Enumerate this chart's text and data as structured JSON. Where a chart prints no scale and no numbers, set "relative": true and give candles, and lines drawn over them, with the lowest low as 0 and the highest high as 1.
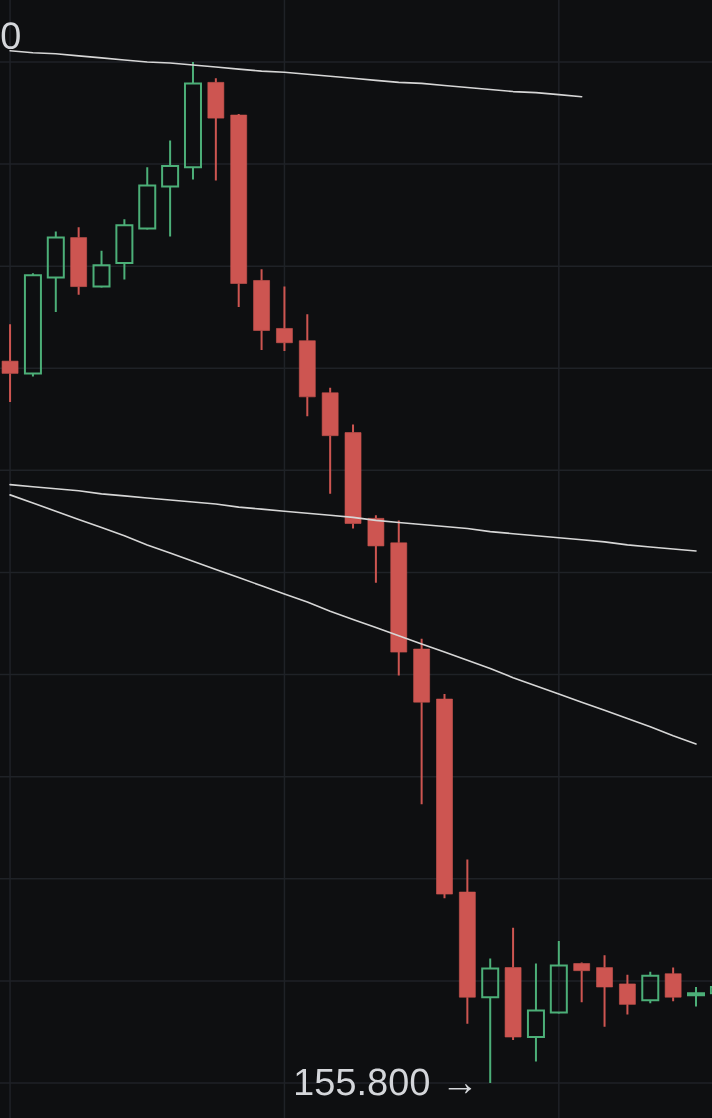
{
  "chart_data": {
    "type": "candlestick",
    "relative": true,
    "grid": true,
    "categories": [
      null,
      null,
      null,
      null,
      null,
      null,
      null,
      null,
      null,
      null,
      null,
      null,
      null,
      null,
      null,
      null,
      null,
      null,
      null,
      null,
      null,
      null,
      null,
      null,
      null,
      null,
      null,
      null,
      null,
      null,
      null,
      null
    ],
    "ohlc": [
      [
        0.707,
        0.743,
        0.667,
        0.695
      ],
      [
        0.695,
        0.793,
        0.692,
        0.791
      ],
      [
        0.789,
        0.834,
        0.755,
        0.828
      ],
      [
        0.828,
        0.838,
        0.772,
        0.78
      ],
      [
        0.78,
        0.815,
        0.779,
        0.801
      ],
      [
        0.803,
        0.846,
        0.787,
        0.84
      ],
      [
        0.837,
        0.897,
        0.836,
        0.879
      ],
      [
        0.878,
        0.923,
        0.829,
        0.898
      ],
      [
        0.897,
        1.0,
        0.885,
        0.979
      ],
      [
        0.98,
        0.984,
        0.884,
        0.945
      ],
      [
        0.948,
        0.949,
        0.76,
        0.783
      ],
      [
        0.786,
        0.797,
        0.718,
        0.737
      ],
      [
        0.739,
        0.78,
        0.717,
        0.725
      ],
      [
        0.727,
        0.753,
        0.653,
        0.672
      ],
      [
        0.676,
        0.681,
        0.577,
        0.634
      ],
      [
        0.637,
        0.645,
        0.543,
        0.548
      ],
      [
        0.553,
        0.556,
        0.49,
        0.526
      ],
      [
        0.529,
        0.551,
        0.399,
        0.422
      ],
      [
        0.425,
        0.435,
        0.273,
        0.373
      ],
      [
        0.376,
        0.381,
        0.181,
        0.185
      ],
      [
        0.187,
        0.219,
        0.058,
        0.084
      ],
      [
        0.084,
        0.122,
        0.0,
        0.112
      ],
      [
        0.113,
        0.152,
        0.042,
        0.045
      ],
      [
        0.045,
        0.117,
        0.021,
        0.071
      ],
      [
        0.069,
        0.139,
        0.068,
        0.115
      ],
      [
        0.117,
        0.118,
        0.079,
        0.11
      ],
      [
        0.113,
        0.125,
        0.055,
        0.094
      ],
      [
        0.097,
        0.106,
        0.067,
        0.077
      ],
      [
        0.081,
        0.109,
        0.078,
        0.105
      ],
      [
        0.107,
        0.113,
        0.08,
        0.084
      ],
      [
        0.086,
        0.094,
        0.075,
        0.088
      ],
      [
        0.088,
        0.096,
        0.085,
        0.094
      ]
    ],
    "colors": [
      "#cd5551",
      "#4caf78",
      "#4caf78",
      "#cd5551",
      "#4caf78",
      "#4caf78",
      "#4caf78",
      "#4caf78",
      "#4caf78",
      "#cd5551",
      "#cd5551",
      "#cd5551",
      "#cd5551",
      "#cd5551",
      "#cd5551",
      "#cd5551",
      "#cd5551",
      "#cd5551",
      "#cd5551",
      "#cd5551",
      "#cd5551",
      "#4caf78",
      "#cd5551",
      "#4caf78",
      "#4caf78",
      "#cd5551",
      "#cd5551",
      "#cd5551",
      "#4caf78",
      "#cd5551",
      "#4caf78",
      "#4caf78"
    ],
    "series": [
      {
        "type": "line",
        "color": "#d6d6d6",
        "values": [
          1.011,
          1.009,
          1.008,
          1.006,
          1.004,
          1.002,
          1.0,
          0.999,
          0.997,
          0.995,
          0.993,
          0.991,
          0.99,
          0.988,
          0.986,
          0.984,
          0.982,
          0.98,
          0.979,
          0.977,
          0.975,
          0.973,
          0.971,
          0.97,
          0.968,
          0.966,
          null,
          null,
          null,
          null,
          null,
          null
        ]
      },
      {
        "type": "line",
        "color": "#d6d6d6",
        "values": [
          0.586,
          0.584,
          0.582,
          0.58,
          0.577,
          0.575,
          0.573,
          0.571,
          0.569,
          0.567,
          0.564,
          0.562,
          0.56,
          0.558,
          0.556,
          0.554,
          0.551,
          0.549,
          0.547,
          0.545,
          0.543,
          0.54,
          0.538,
          0.536,
          0.534,
          0.532,
          0.53,
          0.527,
          0.525,
          0.523,
          0.521,
          null
        ]
      },
      {
        "type": "line",
        "color": "#d6d6d6",
        "values": [
          0.576,
          0.568,
          0.56,
          0.552,
          0.544,
          0.536,
          0.527,
          0.519,
          0.511,
          0.503,
          0.495,
          0.487,
          0.479,
          0.471,
          0.462,
          0.454,
          0.446,
          0.438,
          0.43,
          0.422,
          0.414,
          0.406,
          0.397,
          0.389,
          0.381,
          0.373,
          0.365,
          0.357,
          0.349,
          0.34,
          0.332,
          null
        ]
      }
    ],
    "annotations": [
      "0",
      "155.800 →"
    ]
  }
}
